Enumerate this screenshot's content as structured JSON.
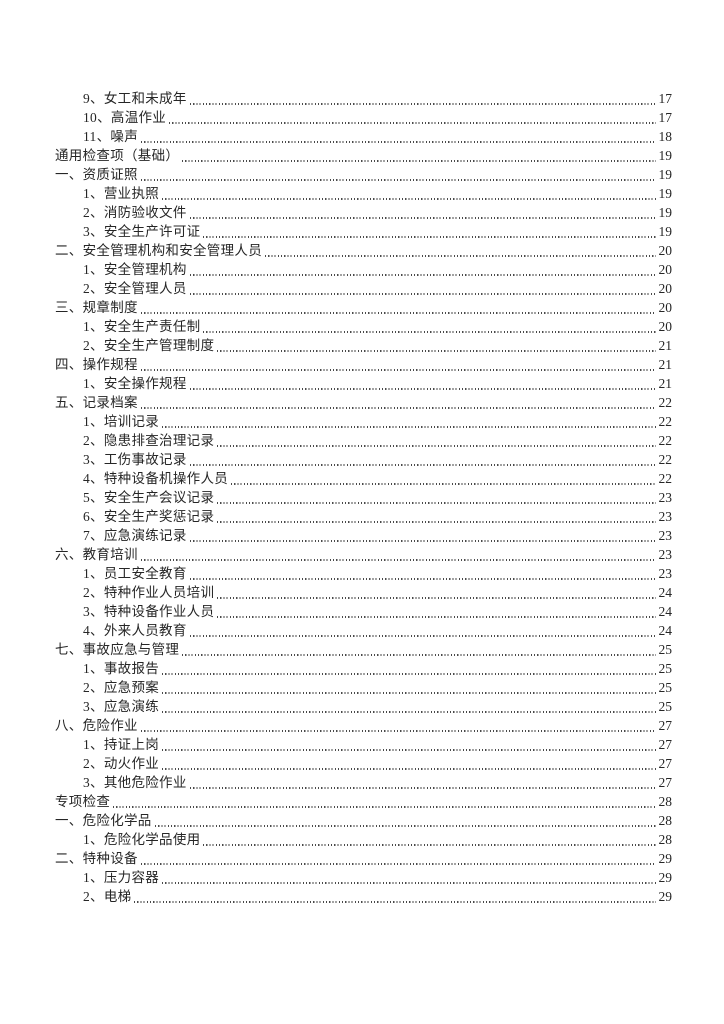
{
  "page": {
    "background_color": "#ffffff",
    "text_color": "#262626",
    "leader_color": "#4a4a4a"
  },
  "toc": {
    "entries": [
      {
        "label": "9、女工和未成年",
        "page": "17",
        "indent": 1
      },
      {
        "label": "10、高温作业",
        "page": "17",
        "indent": 1
      },
      {
        "label": "11、噪声",
        "page": "18",
        "indent": 1
      },
      {
        "label": "通用检查项（基础）",
        "page": "19",
        "indent": 0
      },
      {
        "label": "一、资质证照",
        "page": "19",
        "indent": 0
      },
      {
        "label": "1、营业执照",
        "page": "19",
        "indent": 1
      },
      {
        "label": "2、消防验收文件",
        "page": "19",
        "indent": 1
      },
      {
        "label": "3、安全生产许可证",
        "page": "19",
        "indent": 1
      },
      {
        "label": "二、安全管理机构和安全管理人员",
        "page": "20",
        "indent": 0
      },
      {
        "label": "1、安全管理机构",
        "page": "20",
        "indent": 1
      },
      {
        "label": "2、安全管理人员",
        "page": "20",
        "indent": 1
      },
      {
        "label": "三、规章制度",
        "page": "20",
        "indent": 0
      },
      {
        "label": "1、安全生产责任制",
        "page": "20",
        "indent": 1
      },
      {
        "label": "2、安全生产管理制度",
        "page": "21",
        "indent": 1
      },
      {
        "label": "四、操作规程",
        "page": "21",
        "indent": 0
      },
      {
        "label": "1、安全操作规程",
        "page": "21",
        "indent": 1
      },
      {
        "label": "五、记录档案",
        "page": "22",
        "indent": 0
      },
      {
        "label": "1、培训记录",
        "page": "22",
        "indent": 1
      },
      {
        "label": "2、隐患排查治理记录",
        "page": "22",
        "indent": 1
      },
      {
        "label": "3、工伤事故记录",
        "page": "22",
        "indent": 1
      },
      {
        "label": "4、特种设备机操作人员",
        "page": "22",
        "indent": 1
      },
      {
        "label": "5、安全生产会议记录",
        "page": "23",
        "indent": 1
      },
      {
        "label": "6、安全生产奖惩记录",
        "page": "23",
        "indent": 1
      },
      {
        "label": "7、应急演练记录",
        "page": "23",
        "indent": 1
      },
      {
        "label": "六、教育培训",
        "page": "23",
        "indent": 0
      },
      {
        "label": "1、员工安全教育",
        "page": "23",
        "indent": 1
      },
      {
        "label": "2、特种作业人员培训",
        "page": "24",
        "indent": 1
      },
      {
        "label": "3、特种设备作业人员",
        "page": "24",
        "indent": 1
      },
      {
        "label": "4、外来人员教育",
        "page": "24",
        "indent": 1
      },
      {
        "label": "七、事故应急与管理",
        "page": "25",
        "indent": 0
      },
      {
        "label": "1、事故报告",
        "page": "25",
        "indent": 1
      },
      {
        "label": "2、应急预案",
        "page": "25",
        "indent": 1
      },
      {
        "label": "3、应急演练",
        "page": "25",
        "indent": 1
      },
      {
        "label": "八、危险作业",
        "page": "27",
        "indent": 0
      },
      {
        "label": "1、持证上岗",
        "page": "27",
        "indent": 1
      },
      {
        "label": "2、动火作业",
        "page": "27",
        "indent": 1
      },
      {
        "label": "3、其他危险作业",
        "page": "27",
        "indent": 1
      },
      {
        "label": "专项检查",
        "page": "28",
        "indent": 0
      },
      {
        "label": "一、危险化学品",
        "page": "28",
        "indent": 0
      },
      {
        "label": "1、危险化学品使用",
        "page": "28",
        "indent": 1
      },
      {
        "label": "二、特种设备",
        "page": "29",
        "indent": 0
      },
      {
        "label": "1、压力容器",
        "page": "29",
        "indent": 1
      },
      {
        "label": "2、电梯",
        "page": "29",
        "indent": 1
      }
    ]
  }
}
